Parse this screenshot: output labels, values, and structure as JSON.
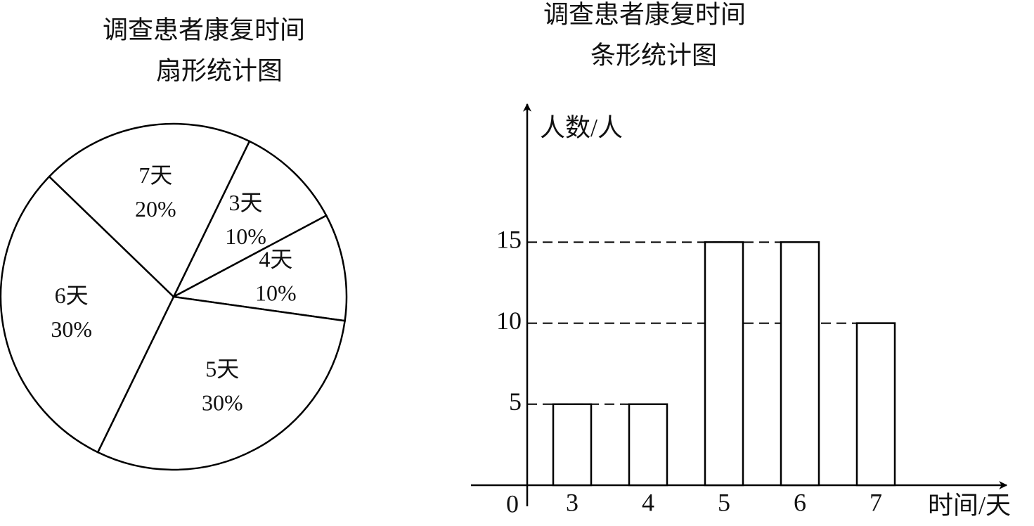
{
  "chart_data": [
    {
      "type": "pie",
      "title": "调查患者康复时间",
      "subtitle": "扇形统计图",
      "categories": [
        "3天",
        "4天",
        "5天",
        "6天",
        "7天"
      ],
      "values": [
        10,
        10,
        30,
        30,
        20
      ],
      "value_labels": [
        "10%",
        "10%",
        "30%",
        "30%",
        "20%"
      ],
      "color": "#ffffff"
    },
    {
      "type": "bar",
      "title": "调查患者康复时间",
      "subtitle": "条形统计图",
      "y_label": "人数/人",
      "x_label": "时间/天",
      "categories": [
        "3",
        "4",
        "5",
        "6",
        "7"
      ],
      "values": [
        5,
        5,
        15,
        15,
        10
      ],
      "ylim": [
        0,
        23
      ],
      "yticks": [
        0,
        5,
        10,
        15
      ],
      "grid": true,
      "color": "#ffffff"
    }
  ]
}
